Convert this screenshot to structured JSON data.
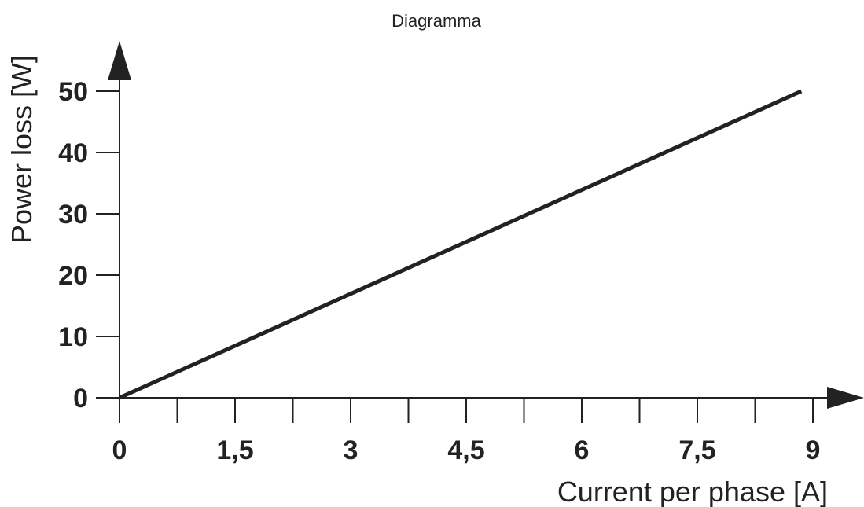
{
  "chart_data": {
    "type": "line",
    "title": "Diagramma",
    "xlabel": "Current per phase [A]",
    "ylabel": "Power loss  [W]",
    "xlim": [
      0,
      9
    ],
    "ylim": [
      0,
      50
    ],
    "x_ticks": [
      0,
      1.5,
      3,
      4.5,
      6,
      7.5,
      9
    ],
    "x_tick_labels": [
      "0",
      "1,5",
      "3",
      "4,5",
      "6",
      "7,5",
      "9"
    ],
    "y_ticks": [
      0,
      10,
      20,
      30,
      40,
      50
    ],
    "y_tick_labels": [
      "0",
      "10",
      "20",
      "30",
      "40",
      "50"
    ],
    "grid": false,
    "series": [
      {
        "x": [
          0,
          8.85
        ],
        "y": [
          0,
          50
        ]
      }
    ],
    "colors": {
      "line": "#222222",
      "axis": "#222222"
    }
  }
}
